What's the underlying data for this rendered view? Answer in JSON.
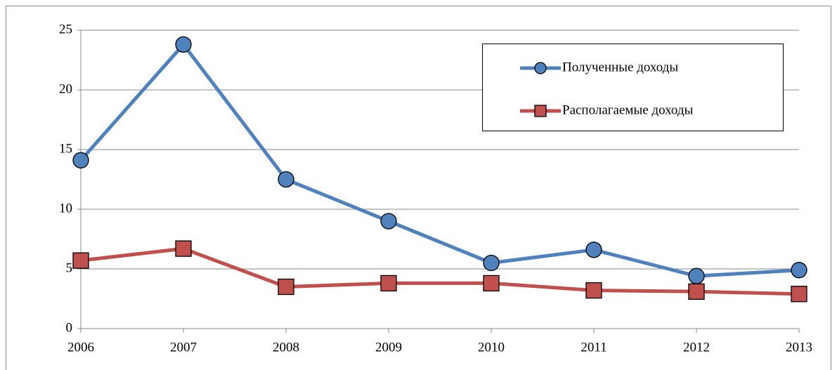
{
  "chart_data": {
    "type": "line",
    "categories": [
      "2006",
      "2007",
      "2008",
      "2009",
      "2010",
      "2011",
      "2012",
      "2013"
    ],
    "series": [
      {
        "name": "Полученные доходы",
        "color": "#4f81bd",
        "marker": "circle",
        "values": [
          14.1,
          23.8,
          12.5,
          9.0,
          5.5,
          6.6,
          4.4,
          4.9
        ]
      },
      {
        "name": "Располагаемые доходы",
        "color": "#c0504d",
        "marker": "square",
        "values": [
          5.7,
          6.7,
          3.5,
          3.8,
          3.8,
          3.2,
          3.1,
          2.9
        ]
      }
    ],
    "ylim": [
      0,
      25
    ],
    "yticks": [
      0,
      5,
      10,
      15,
      20,
      25
    ],
    "grid": true
  }
}
